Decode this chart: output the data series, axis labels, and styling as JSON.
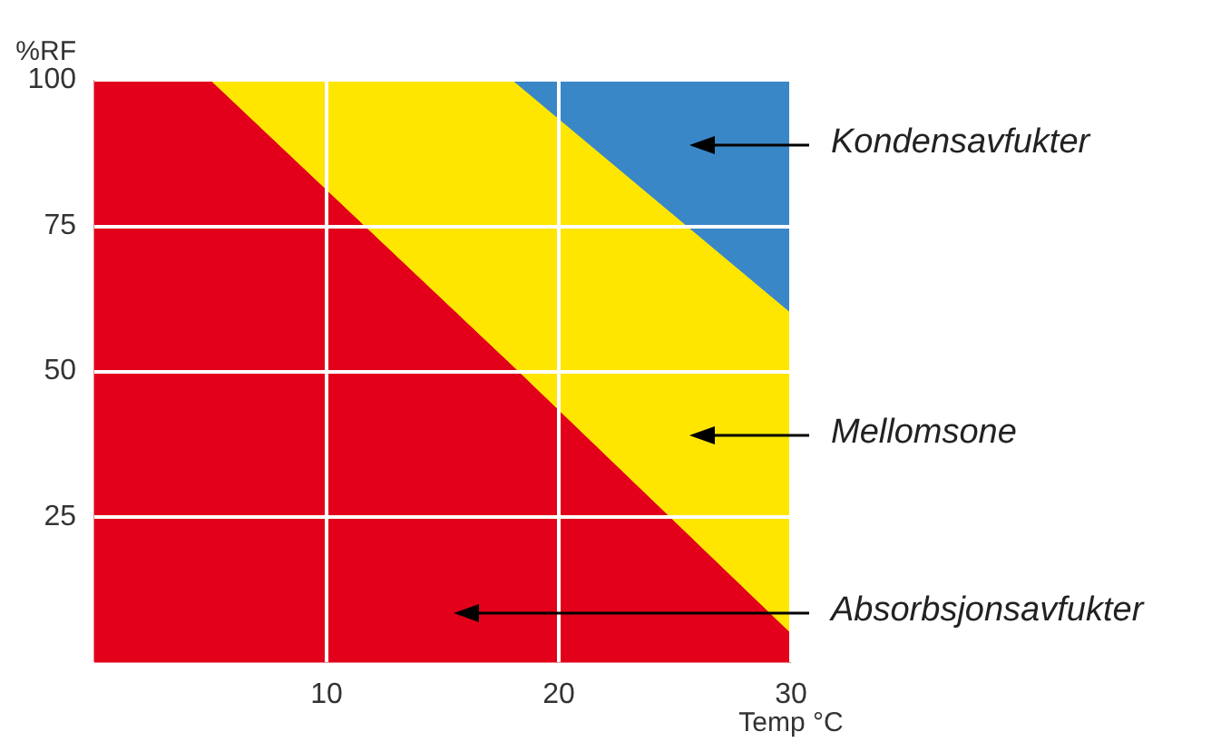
{
  "chart_data": {
    "type": "area",
    "stacked": true,
    "xlabel": "Temp °C",
    "ylabel": "%RF",
    "x": [
      0,
      5,
      18,
      30
    ],
    "series": [
      {
        "color": "#e2001a",
        "values": [
          100,
          100,
          51,
          5
        ]
      },
      {
        "color": "#ffe600",
        "values": [
          0,
          0,
          49,
          55
        ]
      },
      {
        "color": "#3a87c8",
        "values": [
          0,
          0,
          0,
          40
        ]
      }
    ],
    "xlim": [
      0,
      30
    ],
    "xticks": [
      10,
      20,
      30
    ],
    "ylim": [
      0,
      100
    ],
    "yticks": [
      25,
      50,
      75,
      100
    ],
    "grid": true,
    "annotations": [
      "Kondensavfukter",
      "Mellomsone",
      "Absorbsjonsavfukter"
    ]
  }
}
